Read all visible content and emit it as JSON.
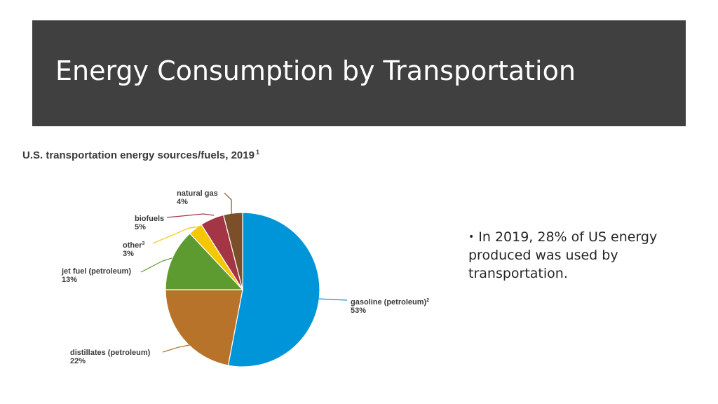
{
  "slide": {
    "title": "Energy Consumption by Transportation",
    "bullet": "In 2019, 28% of US energy produced was used by transportation."
  },
  "chart_data": {
    "type": "pie",
    "title": "U.S. transportation energy sources/fuels, 2019",
    "title_footnote": "1",
    "slices": [
      {
        "label": "gasoline (petroleum)",
        "footnote": "2",
        "value": 53,
        "value_label": "53%",
        "color": "#0095d9"
      },
      {
        "label": "distillates (petroleum)",
        "footnote": "",
        "value": 22,
        "value_label": "22%",
        "color": "#b8732a"
      },
      {
        "label": "jet fuel (petroleum)",
        "footnote": "",
        "value": 13,
        "value_label": "13%",
        "color": "#5d9a2f"
      },
      {
        "label": "other",
        "footnote": "3",
        "value": 3,
        "value_label": "3%",
        "color": "#f5c700"
      },
      {
        "label": "biofuels",
        "footnote": "",
        "value": 5,
        "value_label": "5%",
        "color": "#a33545"
      },
      {
        "label": "natural gas",
        "footnote": "",
        "value": 4,
        "value_label": "4%",
        "color": "#7a4f2a"
      }
    ]
  }
}
